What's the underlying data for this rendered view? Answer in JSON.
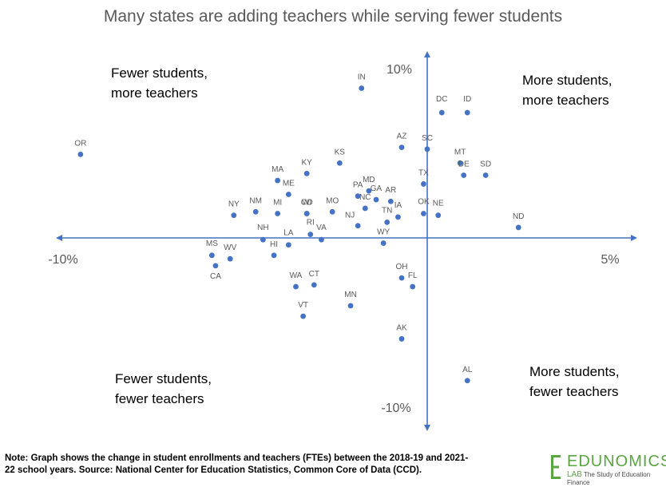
{
  "chart_data": {
    "type": "scatter",
    "title": "Many states are adding teachers while serving fewer students",
    "xlim": [
      -10,
      5
    ],
    "ylim": [
      -10,
      10
    ],
    "x_tick_labels": [
      {
        "value": -10,
        "label": "-10%"
      },
      {
        "value": 5,
        "label": "5%"
      }
    ],
    "y_tick_labels": [
      {
        "value": 10,
        "label": "10%"
      },
      {
        "value": -10,
        "label": "-10%"
      }
    ],
    "quadrant_labels": {
      "top_left": [
        "Fewer students,",
        "more teachers"
      ],
      "top_right": [
        "More students,",
        "more teachers"
      ],
      "bottom_left": [
        "Fewer students,",
        "fewer teachers"
      ],
      "bottom_right": [
        "More students,",
        "fewer teachers"
      ]
    },
    "points": [
      {
        "label": "OR",
        "x": -9.5,
        "y": 4.8
      },
      {
        "label": "IN",
        "x": -1.8,
        "y": 8.6
      },
      {
        "label": "DC",
        "x": 0.4,
        "y": 7.2
      },
      {
        "label": "ID",
        "x": 1.1,
        "y": 7.2
      },
      {
        "label": "AZ",
        "x": -0.7,
        "y": 5.2
      },
      {
        "label": "SC",
        "x": 0.0,
        "y": 5.1
      },
      {
        "label": "MT",
        "x": 0.9,
        "y": 4.3
      },
      {
        "label": "DE",
        "x": 1.0,
        "y": 3.6
      },
      {
        "label": "SD",
        "x": 1.6,
        "y": 3.6
      },
      {
        "label": "KS",
        "x": -2.4,
        "y": 4.3
      },
      {
        "label": "KY",
        "x": -3.3,
        "y": 3.7
      },
      {
        "label": "MA",
        "x": -4.1,
        "y": 3.3
      },
      {
        "label": "ME",
        "x": -3.8,
        "y": 2.5
      },
      {
        "label": "TX",
        "x": -0.1,
        "y": 3.1
      },
      {
        "label": "MD",
        "x": -1.6,
        "y": 2.7
      },
      {
        "label": "PA",
        "x": -1.9,
        "y": 2.4
      },
      {
        "label": "GA",
        "x": -1.4,
        "y": 2.2
      },
      {
        "label": "AR",
        "x": -1.0,
        "y": 2.1
      },
      {
        "label": "NC",
        "x": -1.7,
        "y": 1.7
      },
      {
        "label": "NY",
        "x": -5.3,
        "y": 1.3
      },
      {
        "label": "NM",
        "x": -4.7,
        "y": 1.5
      },
      {
        "label": "MI",
        "x": -4.1,
        "y": 1.4
      },
      {
        "label": "WI",
        "x": -3.3,
        "y": 1.4
      },
      {
        "label": "CO",
        "x": -3.3,
        "y": 1.4
      },
      {
        "label": "MO",
        "x": -2.6,
        "y": 1.5
      },
      {
        "label": "NJ",
        "x": -1.9,
        "y": 0.7
      },
      {
        "label": "TN",
        "x": -1.1,
        "y": 0.9
      },
      {
        "label": "IA",
        "x": -0.8,
        "y": 1.2
      },
      {
        "label": "OK",
        "x": -0.1,
        "y": 1.4
      },
      {
        "label": "NE",
        "x": 0.3,
        "y": 1.3
      },
      {
        "label": "ND",
        "x": 2.5,
        "y": 0.6
      },
      {
        "label": "RI",
        "x": -3.2,
        "y": 0.2
      },
      {
        "label": "VA",
        "x": -2.9,
        "y": -0.1
      },
      {
        "label": "WY",
        "x": -1.2,
        "y": -0.3
      },
      {
        "label": "LA",
        "x": -3.8,
        "y": -0.4
      },
      {
        "label": "NH",
        "x": -4.5,
        "y": -0.1
      },
      {
        "label": "HI",
        "x": -4.2,
        "y": -1.0
      },
      {
        "label": "MS",
        "x": -5.9,
        "y": -1.0
      },
      {
        "label": "WV",
        "x": -5.4,
        "y": -1.2
      },
      {
        "label": "CA",
        "x": -5.8,
        "y": -1.6
      },
      {
        "label": "WA",
        "x": -3.6,
        "y": -2.8
      },
      {
        "label": "CT",
        "x": -3.1,
        "y": -2.7
      },
      {
        "label": "VT",
        "x": -3.4,
        "y": -4.5
      },
      {
        "label": "MN",
        "x": -2.1,
        "y": -3.9
      },
      {
        "label": "OH",
        "x": -0.7,
        "y": -2.3
      },
      {
        "label": "FL",
        "x": -0.4,
        "y": -2.8
      },
      {
        "label": "AK",
        "x": -0.7,
        "y": -5.8
      },
      {
        "label": "AL",
        "x": 1.1,
        "y": -8.2
      }
    ]
  },
  "footer": {
    "note_line1": "Note: Graph shows the change in student enrollments and teachers (FTEs) between the 2018-19 and 2021-",
    "note_line2": "22 school years. Source: National Center for Education Statistics, Common Core of Data (CCD).",
    "logo_word": "EDUNOMICS",
    "logo_lab": "LAB",
    "logo_tagline": "The Study of Education Finance",
    "brand_color": "#5aa542"
  },
  "colors": {
    "axis": "#4472c4",
    "point": "#4472c4",
    "title": "#595959",
    "label": "#595959"
  }
}
